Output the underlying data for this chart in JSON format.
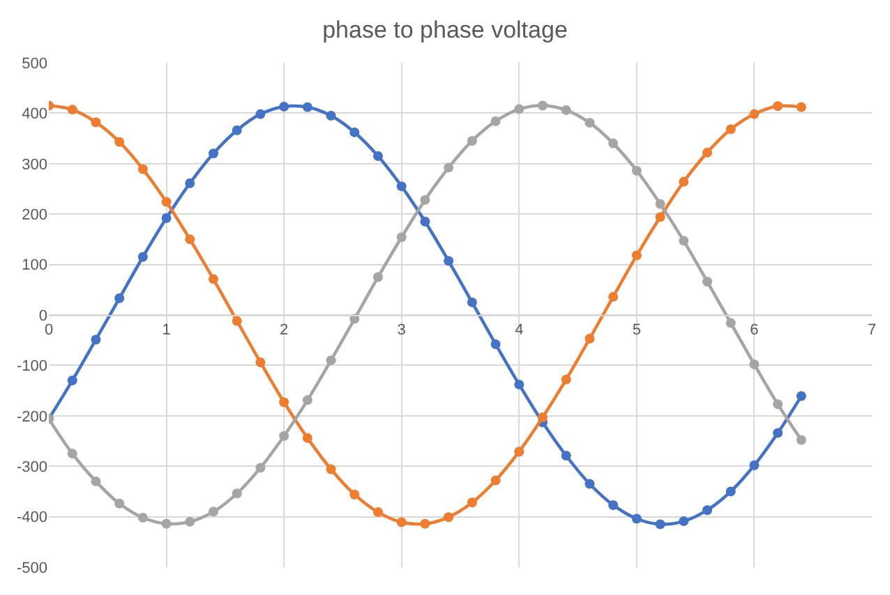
{
  "chart_data": {
    "type": "line",
    "title": "phase to phase voltage",
    "x": [
      0,
      0.2,
      0.4,
      0.6,
      0.8,
      1.0,
      1.2,
      1.4,
      1.6,
      1.8,
      2.0,
      2.2,
      2.4,
      2.6,
      2.8,
      3.0,
      3.2,
      3.4,
      3.6,
      3.8,
      4.0,
      4.2,
      4.4,
      4.6,
      4.8,
      5.0,
      5.2,
      5.4,
      5.6,
      5.8,
      6.0,
      6.2,
      6.4
    ],
    "series": [
      {
        "color": "#4472c4",
        "values": [
          -206,
          -130,
          -49,
          33,
          115,
          192,
          261,
          320,
          366,
          398,
          413,
          412,
          395,
          362,
          315,
          255,
          185,
          107,
          25,
          -58,
          -138,
          -213,
          -279,
          -335,
          -377,
          -404,
          -415,
          -409,
          -387,
          -350,
          -298,
          -234,
          -161
        ]
      },
      {
        "color": "#ed7d31",
        "values": [
          415,
          407,
          382,
          343,
          289,
          224,
          150,
          71,
          -12,
          -94,
          -173,
          -244,
          -306,
          -356,
          -391,
          -411,
          -414,
          -401,
          -372,
          -328,
          -271,
          -203,
          -128,
          -47,
          36,
          118,
          194,
          264,
          322,
          368,
          398,
          414,
          412
        ]
      },
      {
        "color": "#a5a5a5",
        "values": [
          -206,
          -275,
          -330,
          -374,
          -402,
          -414,
          -410,
          -390,
          -354,
          -303,
          -240,
          -169,
          -90,
          -8,
          75,
          154,
          228,
          292,
          345,
          384,
          408,
          415,
          406,
          381,
          340,
          286,
          220,
          147,
          66,
          -16,
          -98,
          -177,
          -248
        ]
      }
    ],
    "xlim": [
      0,
      7
    ],
    "xticks": [
      0,
      1,
      2,
      3,
      4,
      5,
      6,
      7
    ],
    "ylim": [
      -500,
      500
    ],
    "yticks": [
      -500,
      -400,
      -300,
      -200,
      -100,
      0,
      100,
      200,
      300,
      400,
      500
    ],
    "grid": true,
    "marker": "circle",
    "line_style": "solid"
  }
}
